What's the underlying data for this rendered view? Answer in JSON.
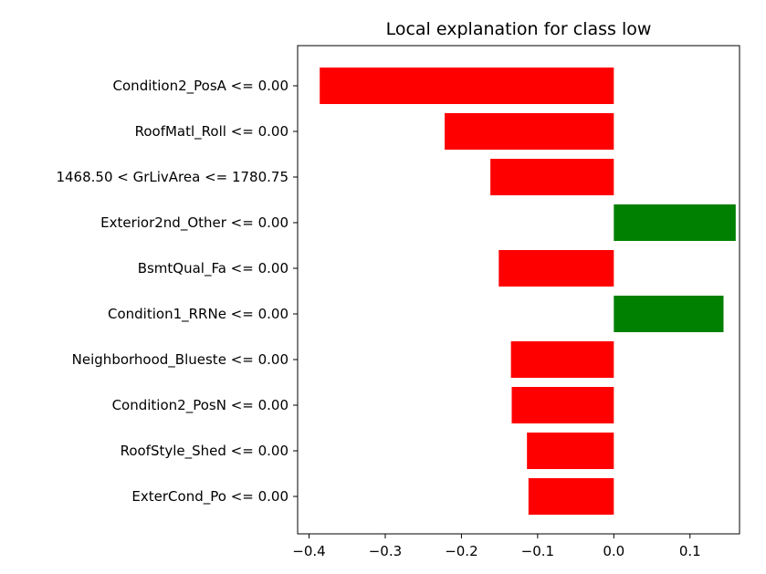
{
  "chart_data": {
    "type": "bar",
    "orientation": "horizontal",
    "title": "Local explanation for class low",
    "xlabel": "",
    "ylabel": "",
    "xlim": [
      -0.415,
      0.165
    ],
    "xticks": [
      -0.4,
      -0.3,
      -0.2,
      -0.1,
      0.0,
      0.1
    ],
    "xtick_labels": [
      "−0.4",
      "−0.3",
      "−0.2",
      "−0.1",
      "0.0",
      "0.1"
    ],
    "grid": false,
    "categories": [
      "Condition2_PosA <= 0.00",
      "RoofMatl_Roll <= 0.00",
      "1468.50 < GrLivArea <= 1780.75",
      "Exterior2nd_Other <= 0.00",
      "BsmtQual_Fa <= 0.00",
      "Condition1_RRNe <= 0.00",
      "Neighborhood_Blueste <= 0.00",
      "Condition2_PosN <= 0.00",
      "RoofStyle_Shed <= 0.00",
      "ExterCond_Po <= 0.00"
    ],
    "values": [
      -0.386,
      -0.222,
      -0.162,
      0.16,
      -0.151,
      0.144,
      -0.135,
      -0.134,
      -0.114,
      -0.112
    ],
    "colors": {
      "positive": "#008000",
      "negative": "#ff0000"
    }
  }
}
